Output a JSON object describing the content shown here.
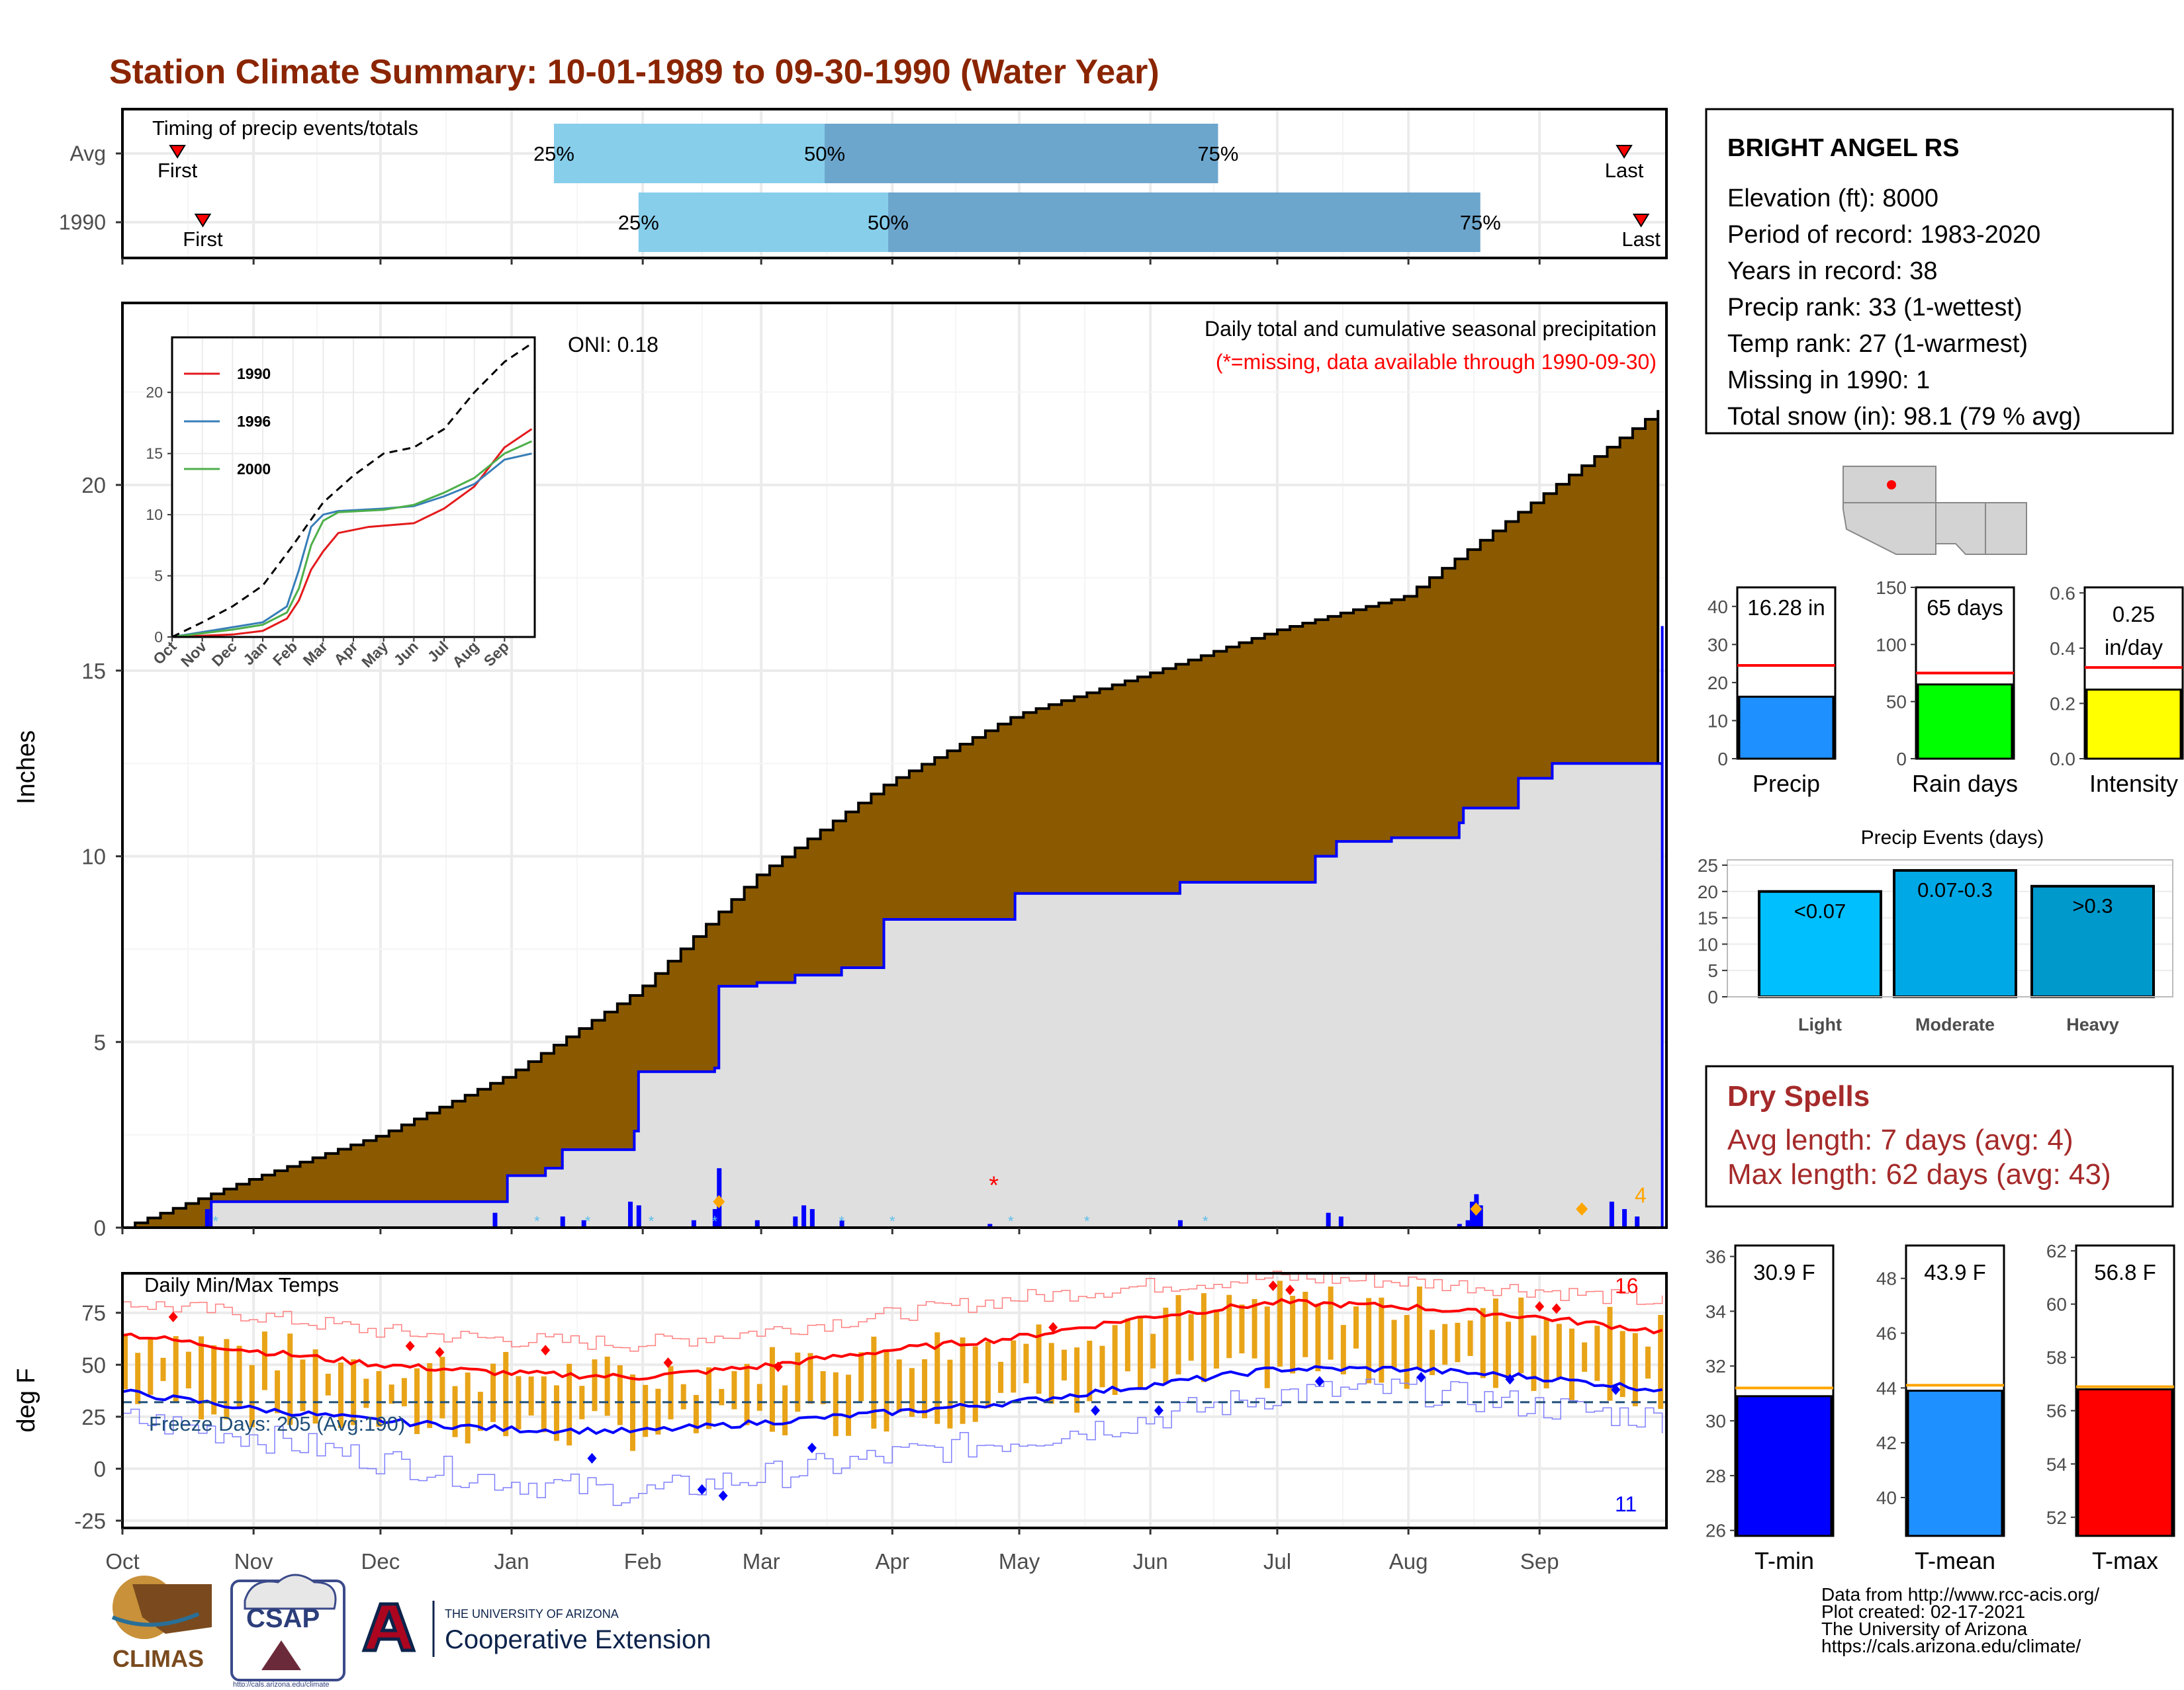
{
  "title": "Station Climate Summary: 10-01-1989 to 09-30-1990 (Water Year)",
  "colors": {
    "title": "#8B2500",
    "avg_cum": "#8B5A00",
    "obs_cum": "#DFDFDF",
    "precip_bar": "#0000FF",
    "q_light": "#87CEEB",
    "q_dark": "#6CA6CD",
    "tmax": "#FF0000",
    "tmin": "#0000FF",
    "range_bar": "#E8A317",
    "dry_spell_text": "#A52A2A"
  },
  "timing": {
    "label": "Timing of precip events/totals",
    "rows": [
      {
        "label": "Avg",
        "first": "First",
        "last": "Last",
        "first_date": "1989-10-14",
        "last_date": "1990-09-21",
        "q25_date": "1990-01-11",
        "q50_date": "1990-03-16",
        "q75_date": "1990-06-17",
        "p25": "25%",
        "p50": "50%",
        "p75": "75%"
      },
      {
        "label": "1990",
        "first": "First",
        "last": "Last",
        "first_date": "1989-10-20",
        "last_date": "1990-09-25",
        "q25_date": "1990-01-31",
        "q50_date": "1990-03-31",
        "q75_date": "1990-08-18",
        "p25": "25%",
        "p50": "50%",
        "p75": "75%"
      }
    ]
  },
  "months": [
    "Oct",
    "Nov",
    "Dec",
    "Jan",
    "Feb",
    "Mar",
    "Apr",
    "May",
    "Jun",
    "Jul",
    "Aug",
    "Sep"
  ],
  "precip": {
    "title": "Daily total and cumulative seasonal precipitation",
    "note": "(*=missing, data available through 1990-09-30)",
    "oni": "ONI: 0.18",
    "ylabel": "Inches",
    "yticks": [
      "0",
      "5",
      "10",
      "15",
      "20"
    ],
    "count_label": "4",
    "avg_cum_points": [
      [
        0,
        0
      ],
      [
        30,
        1.3
      ],
      [
        61,
        2.5
      ],
      [
        91,
        4.1
      ],
      [
        122,
        6.4
      ],
      [
        150,
        9.5
      ],
      [
        181,
        12.0
      ],
      [
        211,
        13.8
      ],
      [
        242,
        14.9
      ],
      [
        273,
        16.1
      ],
      [
        303,
        17.0
      ],
      [
        334,
        19.6
      ],
      [
        364,
        22.1
      ]
    ],
    "obs_cum_points": [
      [
        0,
        0
      ],
      [
        20,
        0
      ],
      [
        21,
        0.7
      ],
      [
        90,
        0.7
      ],
      [
        91,
        1.4
      ],
      [
        100,
        1.6
      ],
      [
        104,
        2.1
      ],
      [
        121,
        2.6
      ],
      [
        122,
        4.2
      ],
      [
        140,
        4.3
      ],
      [
        141,
        6.5
      ],
      [
        150,
        6.6
      ],
      [
        159,
        6.8
      ],
      [
        170,
        7.0
      ],
      [
        180,
        8.3
      ],
      [
        211,
        9.0
      ],
      [
        250,
        9.3
      ],
      [
        282,
        10.0
      ],
      [
        287,
        10.4
      ],
      [
        300,
        10.5
      ],
      [
        316,
        10.9
      ],
      [
        317,
        11.3
      ],
      [
        330,
        12.1
      ],
      [
        338,
        12.5
      ],
      [
        364,
        16.2
      ]
    ],
    "daily_bars": [
      [
        20,
        0.5
      ],
      [
        88,
        0.4
      ],
      [
        104,
        0.3
      ],
      [
        109,
        0.2
      ],
      [
        120,
        0.7
      ],
      [
        122,
        0.6
      ],
      [
        135,
        0.2
      ],
      [
        140,
        0.5
      ],
      [
        141,
        1.6
      ],
      [
        150,
        0.2
      ],
      [
        159,
        0.3
      ],
      [
        161,
        0.6
      ],
      [
        163,
        0.5
      ],
      [
        170,
        0.2
      ],
      [
        205,
        0.1
      ],
      [
        250,
        0.2
      ],
      [
        285,
        0.4
      ],
      [
        288,
        0.3
      ],
      [
        316,
        0.1
      ],
      [
        318,
        0.2
      ],
      [
        319,
        0.7
      ],
      [
        320,
        0.9
      ],
      [
        321,
        0.6
      ],
      [
        352,
        0.7
      ],
      [
        355,
        0.5
      ],
      [
        358,
        0.3
      ]
    ]
  },
  "inset": {
    "yticks": [
      "0",
      "5",
      "10",
      "15",
      "20"
    ],
    "xticks": [
      "Oct",
      "Nov",
      "Dec",
      "Jan",
      "Feb",
      "Mar",
      "Apr",
      "May",
      "Jun",
      "Jul",
      "Aug",
      "Sep"
    ],
    "series": [
      {
        "name": "1990",
        "color": "#E41A1C"
      },
      {
        "name": "1996",
        "color": "#377EB8"
      },
      {
        "name": "2000",
        "color": "#4DAF4A"
      }
    ],
    "series_points": [
      [
        [
          0,
          0
        ],
        [
          2,
          0.2
        ],
        [
          3,
          0.5
        ],
        [
          3.8,
          1.5
        ],
        [
          4.2,
          3.0
        ],
        [
          4.6,
          5.5
        ],
        [
          5.0,
          7.0
        ],
        [
          5.5,
          8.5
        ],
        [
          6.5,
          9.0
        ],
        [
          8,
          9.3
        ],
        [
          9,
          10.5
        ],
        [
          10,
          12.3
        ],
        [
          11,
          15.5
        ],
        [
          11.9,
          17.0
        ]
      ],
      [
        [
          0,
          0
        ],
        [
          2,
          0.8
        ],
        [
          3,
          1.2
        ],
        [
          3.8,
          2.5
        ],
        [
          4.2,
          5.5
        ],
        [
          4.6,
          9.0
        ],
        [
          5.0,
          10.0
        ],
        [
          5.5,
          10.3
        ],
        [
          7,
          10.5
        ],
        [
          8,
          10.7
        ],
        [
          9,
          11.5
        ],
        [
          10,
          12.5
        ],
        [
          11,
          14.5
        ],
        [
          11.9,
          15.0
        ]
      ],
      [
        [
          0,
          0
        ],
        [
          2,
          0.6
        ],
        [
          3,
          1.0
        ],
        [
          3.8,
          2.0
        ],
        [
          4.2,
          4.0
        ],
        [
          4.6,
          7.5
        ],
        [
          5.0,
          9.5
        ],
        [
          5.5,
          10.2
        ],
        [
          7,
          10.4
        ],
        [
          8,
          10.8
        ],
        [
          9,
          11.8
        ],
        [
          10,
          13.0
        ],
        [
          11,
          15.0
        ],
        [
          11.9,
          16.0
        ]
      ]
    ],
    "black_points": [
      [
        0,
        0
      ],
      [
        1,
        1.2
      ],
      [
        2,
        2.5
      ],
      [
        3,
        4.2
      ],
      [
        4,
        7.5
      ],
      [
        5,
        11.0
      ],
      [
        6,
        13.2
      ],
      [
        7,
        15.0
      ],
      [
        8,
        15.5
      ],
      [
        9,
        17.0
      ],
      [
        10,
        20.0
      ],
      [
        11,
        22.5
      ],
      [
        11.9,
        24.0
      ]
    ]
  },
  "temps": {
    "title": "Daily Min/Max Temps",
    "freeze": "Freeze Days: 205 (Avg:190)",
    "ylabel": "deg F",
    "yticks": [
      "-25",
      "0",
      "25",
      "50",
      "75"
    ],
    "freeze_line": 32,
    "tmax_avg_points": [
      [
        0,
        65
      ],
      [
        30,
        57
      ],
      [
        61,
        50
      ],
      [
        91,
        46
      ],
      [
        122,
        44
      ],
      [
        150,
        49
      ],
      [
        181,
        57
      ],
      [
        211,
        63
      ],
      [
        242,
        73
      ],
      [
        273,
        80
      ],
      [
        303,
        78
      ],
      [
        334,
        73
      ],
      [
        364,
        66
      ]
    ],
    "tmin_avg_points": [
      [
        0,
        37
      ],
      [
        30,
        29
      ],
      [
        61,
        23
      ],
      [
        91,
        19
      ],
      [
        122,
        18
      ],
      [
        150,
        22
      ],
      [
        181,
        27
      ],
      [
        211,
        32
      ],
      [
        242,
        40
      ],
      [
        273,
        48
      ],
      [
        303,
        48
      ],
      [
        334,
        44
      ],
      [
        364,
        38
      ]
    ],
    "tmax_rec_points": [
      [
        0,
        80
      ],
      [
        30,
        74
      ],
      [
        61,
        66
      ],
      [
        91,
        62
      ],
      [
        122,
        60
      ],
      [
        150,
        66
      ],
      [
        181,
        74
      ],
      [
        211,
        82
      ],
      [
        242,
        88
      ],
      [
        273,
        92
      ],
      [
        303,
        90
      ],
      [
        334,
        86
      ],
      [
        364,
        80
      ]
    ],
    "tmin_rec_points": [
      [
        0,
        24
      ],
      [
        30,
        16
      ],
      [
        61,
        4
      ],
      [
        91,
        -6
      ],
      [
        122,
        -12
      ],
      [
        150,
        -4
      ],
      [
        181,
        6
      ],
      [
        211,
        14
      ],
      [
        242,
        24
      ],
      [
        273,
        36
      ],
      [
        303,
        38
      ],
      [
        334,
        30
      ],
      [
        364,
        24
      ]
    ],
    "count_hot": "16",
    "count_cold": "11"
  },
  "station": {
    "name": "BRIGHT ANGEL RS",
    "lines": [
      "Elevation (ft): 8000",
      "Period of record: 1983-2020",
      "Years in record: 38",
      "Precip rank: 33 (1-wettest)",
      "Temp rank: 27 (1-warmest)",
      "Missing in 1990: 1",
      "Total snow (in): 98.1 (79 % avg)"
    ]
  },
  "summary_bars": [
    {
      "label": "Precip",
      "value_text": "16.28 in",
      "value": 16.28,
      "avg": 24.5,
      "ymax": 45,
      "yticks": [
        "0",
        "10",
        "20",
        "30",
        "40"
      ],
      "tickvals": [
        0,
        10,
        20,
        30,
        40
      ],
      "color": "#1E90FF"
    },
    {
      "label": "Rain days",
      "value_text": "65 days",
      "value": 65,
      "avg": 75,
      "ymax": 150,
      "yticks": [
        "0",
        "50",
        "100",
        "150"
      ],
      "tickvals": [
        0,
        50,
        100,
        150
      ],
      "color": "#00FF00"
    },
    {
      "label": "Intensity",
      "value_text": "0.25 in/day",
      "value_lines": [
        "0.25",
        "in/day"
      ],
      "value": 0.25,
      "avg": 0.33,
      "ymax": 0.62,
      "yticks": [
        "0.0",
        "0.2",
        "0.4",
        "0.6"
      ],
      "tickvals": [
        0,
        0.2,
        0.4,
        0.6
      ],
      "color": "#FFFF00"
    }
  ],
  "events": {
    "title": "Precip Events (days)",
    "yticks": [
      "0",
      "5",
      "10",
      "15",
      "20",
      "25"
    ],
    "bars": [
      {
        "label": "Light",
        "range": "<0.07",
        "value": 20,
        "color": "#00BFFF"
      },
      {
        "label": "Moderate",
        "range": "0.07-0.3",
        "value": 24,
        "color": "#00A9E6"
      },
      {
        "label": "Heavy",
        "range": ">0.3",
        "value": 21,
        "color": "#0099CC"
      }
    ]
  },
  "dry_spells": {
    "title": "Dry Spells",
    "avg_line": "Avg length: 7 days (avg: 4)",
    "max_line": "Max length: 62 days (avg: 43)"
  },
  "temp_bars": [
    {
      "label": "T-min",
      "value_text": "30.9 F",
      "value": 30.9,
      "avg": 31.2,
      "ymin": 25.8,
      "ymax": 36.4,
      "yticks": [
        "26",
        "28",
        "30",
        "32",
        "34",
        "36"
      ],
      "tickvals": [
        26,
        28,
        30,
        32,
        34,
        36
      ],
      "color": "#0000FF"
    },
    {
      "label": "T-mean",
      "value_text": "43.9 F",
      "value": 43.9,
      "avg": 44.1,
      "ymin": 38.6,
      "ymax": 49.2,
      "yticks": [
        "40",
        "42",
        "44",
        "46",
        "48"
      ],
      "tickvals": [
        40,
        42,
        44,
        46,
        48
      ],
      "color": "#1E90FF"
    },
    {
      "label": "T-max",
      "value_text": "56.8 F",
      "value": 56.8,
      "avg": 56.9,
      "ymin": 51.3,
      "ymax": 62.2,
      "yticks": [
        "52",
        "54",
        "56",
        "58",
        "60",
        "62"
      ],
      "tickvals": [
        52,
        54,
        56,
        58,
        60,
        62
      ],
      "color": "#FF0000"
    }
  ],
  "footer": {
    "lines": [
      "Data from http://www.rcc-acis.org/",
      "Plot created: 02-17-2021",
      "The University of Arizona",
      "https://cals.arizona.edu/climate/"
    ],
    "logo_climas": "CLIMAS",
    "logo_csap": "CSAP",
    "csap_url": "http://cals.arizona.edu/climate",
    "ua_small": "THE UNIVERSITY OF ARIZONA",
    "ua_big": "Cooperative Extension"
  },
  "chart_data": [
    {
      "type": "bar",
      "title": "Timing of precip events/totals",
      "categories": [
        "Avg",
        "1990"
      ],
      "series": [
        {
          "name": "25%",
          "values": [
            "1990-01-11",
            "1990-01-31"
          ]
        },
        {
          "name": "50%",
          "values": [
            "1990-03-16",
            "1990-03-31"
          ]
        },
        {
          "name": "75%",
          "values": [
            "1990-06-17",
            "1990-08-18"
          ]
        }
      ]
    },
    {
      "type": "area",
      "title": "Daily total and cumulative seasonal precipitation",
      "ylabel": "Inches",
      "ylim": [
        0,
        25
      ]
    },
    {
      "type": "line",
      "title": "Daily Min/Max Temps",
      "ylabel": "deg F",
      "ylim": [
        -28,
        95
      ]
    },
    {
      "type": "bar",
      "categories": [
        "Precip",
        "Rain days",
        "Intensity"
      ],
      "values": [
        16.28,
        65,
        0.25
      ]
    },
    {
      "type": "bar",
      "title": "Precip Events (days)",
      "categories": [
        "Light",
        "Moderate",
        "Heavy"
      ],
      "values": [
        20,
        24,
        21
      ]
    },
    {
      "type": "bar",
      "categories": [
        "T-min",
        "T-mean",
        "T-max"
      ],
      "values": [
        30.9,
        43.9,
        56.8
      ]
    }
  ]
}
